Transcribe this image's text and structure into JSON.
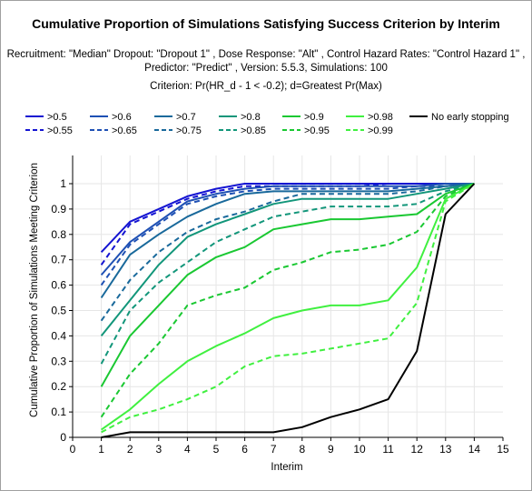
{
  "chart_data": {
    "type": "line",
    "title": "Cumulative Proportion of Simulations Satisfying Success Criterion by Interim",
    "subtitle_lines": [
      "Recruitment: \"Median\" Dropout: \"Dropout 1\" , Dose Response: \"Alt\" , Control Hazard Rates: \"Control Hazard 1\" ,",
      "Predictor: \"Predict\" , Version: 5.5.3, Simulations: 100"
    ],
    "criterion": "Criterion: Pr(HR_d - 1 < -0.2); d=Greatest Pr(Max)",
    "xlabel": "Interim",
    "ylabel": "Cumulative Proportion of Simulations Meeting Criterion",
    "xlim": [
      0,
      15
    ],
    "ylim": [
      0,
      1
    ],
    "xticks": [
      "0",
      "1",
      "2",
      "3",
      "4",
      "5",
      "6",
      "7",
      "8",
      "9",
      "10",
      "11",
      "12",
      "13",
      "14",
      "15"
    ],
    "yticks": [
      "0",
      "0.1",
      "0.2",
      "0.3",
      "0.4",
      "0.5",
      "0.6",
      "0.7",
      "0.8",
      "0.9",
      "1"
    ],
    "grid": true,
    "legend_position": "top",
    "x": [
      1,
      2,
      3,
      4,
      5,
      6,
      7,
      8,
      9,
      10,
      11,
      12,
      13,
      14
    ],
    "series": [
      {
        "name": ">0.5",
        "color": "#1414d2",
        "dash": false,
        "values": [
          0.73,
          0.85,
          0.9,
          0.95,
          0.98,
          1.0,
          1.0,
          1.0,
          1.0,
          1.0,
          1.0,
          1.0,
          1.0,
          1.0
        ]
      },
      {
        "name": ">0.55",
        "color": "#1414d2",
        "dash": true,
        "values": [
          0.68,
          0.84,
          0.89,
          0.94,
          0.97,
          0.99,
          0.99,
          0.99,
          0.99,
          0.99,
          1.0,
          1.0,
          1.0,
          1.0
        ]
      },
      {
        "name": ">0.6",
        "color": "#1e50b4",
        "dash": false,
        "values": [
          0.64,
          0.77,
          0.85,
          0.93,
          0.96,
          0.98,
          0.99,
          0.99,
          0.99,
          0.99,
          0.99,
          0.99,
          1.0,
          1.0
        ]
      },
      {
        "name": ">0.65",
        "color": "#1e50b4",
        "dash": true,
        "values": [
          0.6,
          0.76,
          0.84,
          0.92,
          0.95,
          0.97,
          0.98,
          0.98,
          0.98,
          0.98,
          0.98,
          0.99,
          0.99,
          1.0
        ]
      },
      {
        "name": ">0.7",
        "color": "#19699b",
        "dash": false,
        "values": [
          0.55,
          0.72,
          0.8,
          0.87,
          0.92,
          0.96,
          0.97,
          0.97,
          0.97,
          0.97,
          0.97,
          0.98,
          0.99,
          1.0
        ]
      },
      {
        "name": ">0.75",
        "color": "#19699b",
        "dash": true,
        "values": [
          0.46,
          0.62,
          0.73,
          0.81,
          0.86,
          0.89,
          0.93,
          0.96,
          0.96,
          0.96,
          0.96,
          0.97,
          0.99,
          1.0
        ]
      },
      {
        "name": ">0.8",
        "color": "#12967a",
        "dash": false,
        "values": [
          0.4,
          0.54,
          0.68,
          0.79,
          0.84,
          0.88,
          0.92,
          0.94,
          0.94,
          0.94,
          0.94,
          0.96,
          0.98,
          1.0
        ]
      },
      {
        "name": ">0.85",
        "color": "#12967a",
        "dash": true,
        "values": [
          0.29,
          0.5,
          0.61,
          0.69,
          0.77,
          0.82,
          0.87,
          0.89,
          0.91,
          0.91,
          0.91,
          0.92,
          0.97,
          1.0
        ]
      },
      {
        "name": ">0.9",
        "color": "#1ac832",
        "dash": false,
        "values": [
          0.2,
          0.4,
          0.52,
          0.64,
          0.71,
          0.75,
          0.82,
          0.84,
          0.86,
          0.86,
          0.87,
          0.88,
          0.96,
          1.0
        ]
      },
      {
        "name": ">0.95",
        "color": "#1ac832",
        "dash": true,
        "values": [
          0.08,
          0.25,
          0.37,
          0.52,
          0.56,
          0.59,
          0.66,
          0.69,
          0.73,
          0.74,
          0.76,
          0.81,
          0.95,
          1.0
        ]
      },
      {
        "name": ">0.98",
        "color": "#40f040",
        "dash": false,
        "values": [
          0.03,
          0.11,
          0.21,
          0.3,
          0.36,
          0.41,
          0.47,
          0.5,
          0.52,
          0.52,
          0.54,
          0.67,
          0.94,
          1.0
        ]
      },
      {
        "name": ">0.99",
        "color": "#40f040",
        "dash": true,
        "values": [
          0.02,
          0.08,
          0.11,
          0.15,
          0.2,
          0.28,
          0.32,
          0.33,
          0.35,
          0.37,
          0.39,
          0.53,
          0.93,
          1.0
        ]
      },
      {
        "name": "No early stopping",
        "color": "#000000",
        "dash": false,
        "values": [
          0.0,
          0.02,
          0.02,
          0.02,
          0.02,
          0.02,
          0.02,
          0.04,
          0.08,
          0.11,
          0.15,
          0.34,
          0.88,
          1.0
        ]
      }
    ]
  }
}
